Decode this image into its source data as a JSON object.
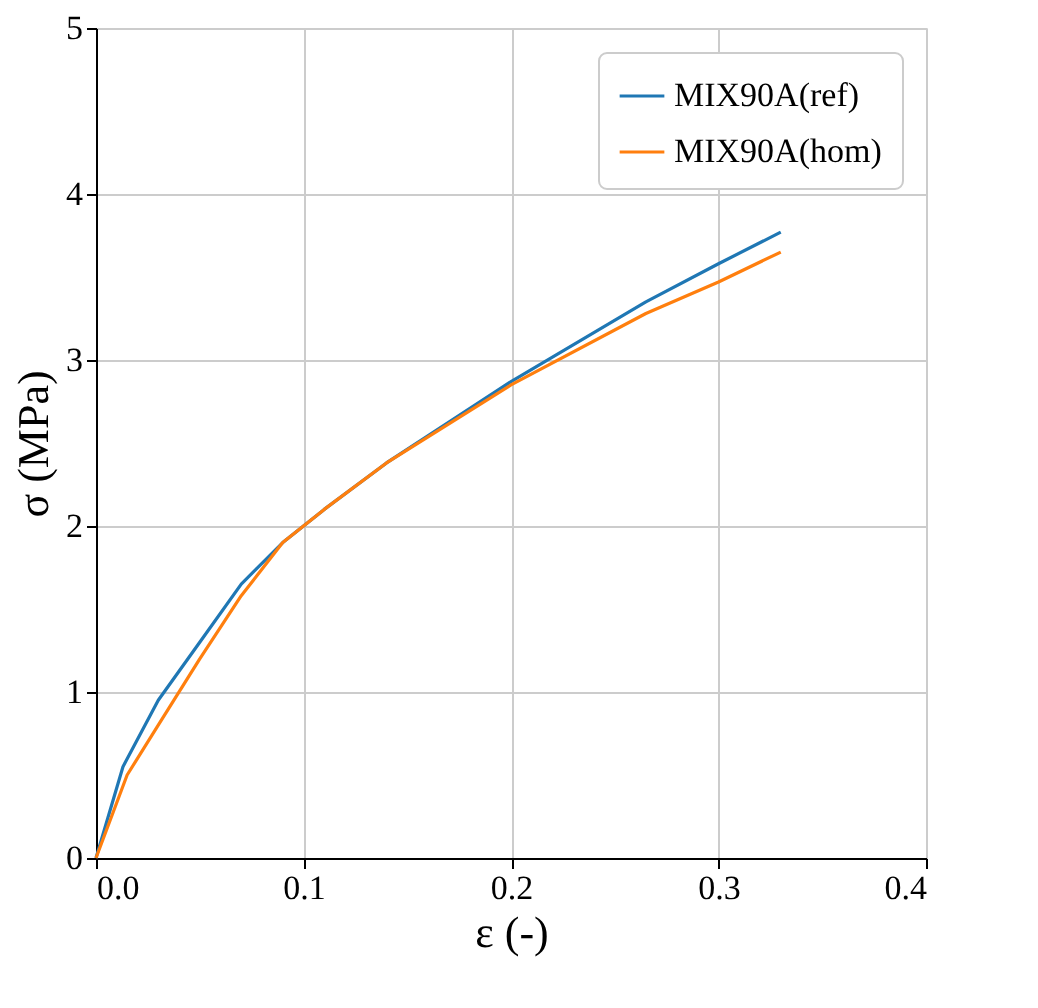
{
  "chart_data": {
    "type": "line",
    "xlabel": "ε (-)",
    "ylabel": "σ (MPa)",
    "xlim": [
      0,
      0.4
    ],
    "ylim": [
      0,
      5
    ],
    "xticks": [
      {
        "value": 0,
        "label": "0.0"
      },
      0.1,
      0.2,
      0.3,
      0.4
    ],
    "yticks": [
      0,
      1,
      2,
      3,
      4,
      5
    ],
    "grid": true,
    "legend": "top right",
    "line_style": "solid",
    "marker": "none",
    "series": [
      {
        "name": "MIX90A(ref)",
        "color": "#1f77b4",
        "x": [
          0,
          0.013,
          0.03,
          0.05,
          0.07,
          0.09,
          0.11,
          0.14,
          0.2,
          0.265,
          0.3,
          0.33
        ],
        "values": [
          0,
          0.55,
          0.95,
          1.3,
          1.65,
          1.9,
          2.1,
          2.38,
          2.87,
          3.35,
          3.58,
          3.77
        ]
      },
      {
        "name": "MIX90A(hom)",
        "color": "#ff7f0e",
        "x": [
          0,
          0.015,
          0.03,
          0.05,
          0.07,
          0.09,
          0.11,
          0.14,
          0.2,
          0.265,
          0.3,
          0.33
        ],
        "values": [
          0,
          0.5,
          0.8,
          1.2,
          1.58,
          1.9,
          2.1,
          2.38,
          2.85,
          3.28,
          3.47,
          3.65
        ]
      }
    ]
  }
}
